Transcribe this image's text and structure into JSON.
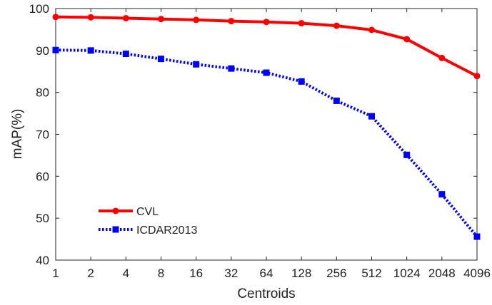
{
  "chart_data": {
    "type": "line",
    "title": "",
    "xlabel": "Centroids",
    "ylabel": "mAP(%)",
    "categories": [
      "1",
      "2",
      "4",
      "8",
      "16",
      "32",
      "64",
      "128",
      "256",
      "512",
      "1024",
      "2048",
      "4096"
    ],
    "x_scale": "log2",
    "ylim": [
      40,
      100
    ],
    "yticks": [
      "40",
      "50",
      "60",
      "70",
      "80",
      "90",
      "100"
    ],
    "grid": false,
    "legend_position": "bottom-left",
    "series": [
      {
        "name": "CVL",
        "color": "#ff0000",
        "line_style": "solid",
        "marker": "circle",
        "values": [
          98.0,
          97.9,
          97.7,
          97.5,
          97.3,
          97.0,
          96.8,
          96.5,
          95.9,
          94.9,
          92.7,
          88.2,
          83.9
        ]
      },
      {
        "name": "ICDAR2013",
        "color": "#0000ff",
        "line_style": "dotted",
        "marker": "square",
        "values": [
          90.1,
          90.0,
          89.2,
          88.0,
          86.7,
          85.7,
          84.7,
          82.6,
          78.0,
          74.3,
          65.1,
          55.7,
          45.6
        ]
      }
    ]
  }
}
